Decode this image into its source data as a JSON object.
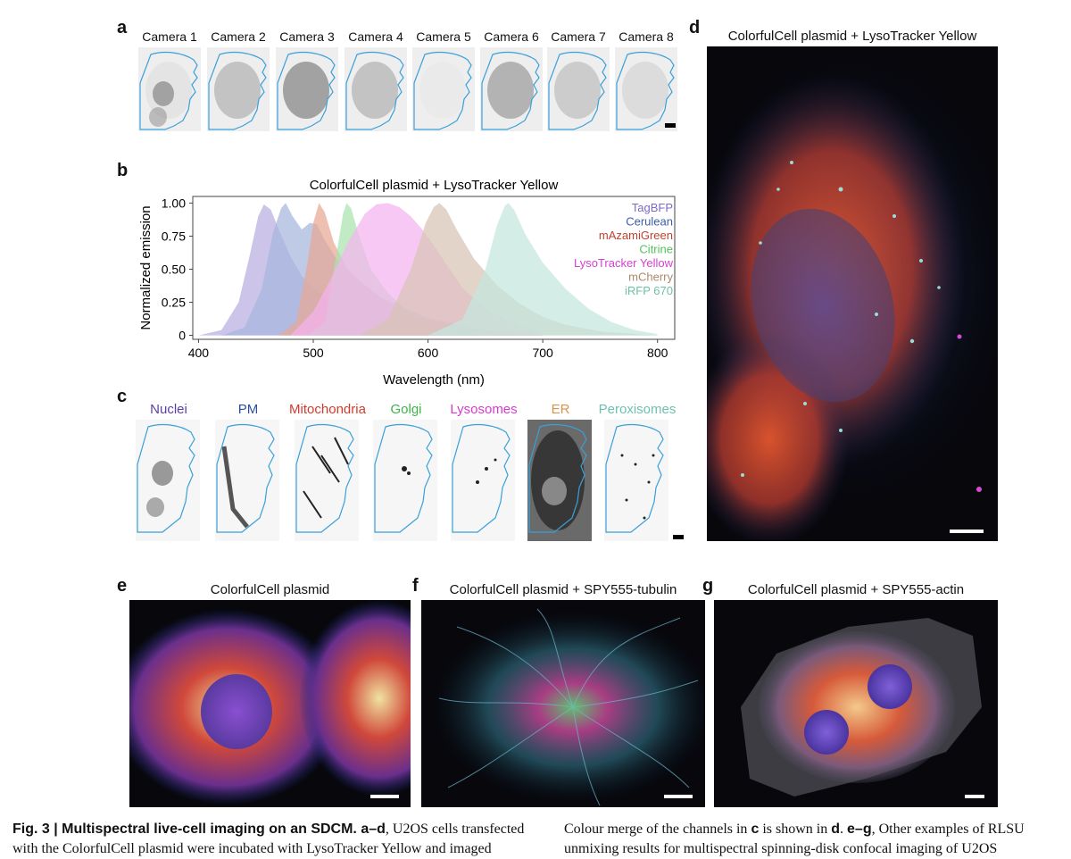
{
  "panels": {
    "a": "a",
    "b": "b",
    "c": "c",
    "d": "d",
    "e": "e",
    "f": "f",
    "g": "g"
  },
  "camera_labels": [
    "Camera 1",
    "Camera 2",
    "Camera 3",
    "Camera 4",
    "Camera 5",
    "Camera 6",
    "Camera 7",
    "Camera 8"
  ],
  "channel_labels": [
    {
      "text": "Nuclei",
      "color": "#5b3fa6"
    },
    {
      "text": "PM",
      "color": "#2b4f9e"
    },
    {
      "text": "Mitochondria",
      "color": "#d63a2a"
    },
    {
      "text": "Golgi",
      "color": "#3db34a"
    },
    {
      "text": "Lysosomes",
      "color": "#d93ad1"
    },
    {
      "text": "ER",
      "color": "#d9944a"
    },
    {
      "text": "Peroxisomes",
      "color": "#6cc2ae"
    }
  ],
  "titles": {
    "b": "ColorfulCell plasmid + LysoTracker Yellow",
    "d": "ColorfulCell plasmid + LysoTracker Yellow",
    "e": "ColorfulCell plasmid",
    "f": "ColorfulCell plasmid + SPY555-tubulin",
    "g": "ColorfulCell plasmid + SPY555-actin"
  },
  "chart_data": {
    "type": "area",
    "title": "ColorfulCell plasmid + LysoTracker Yellow",
    "xlabel": "Wavelength (nm)",
    "ylabel": "Normalized emission",
    "xlim": [
      395,
      815
    ],
    "ylim": [
      -0.03,
      1.05
    ],
    "xticks": [
      "400",
      "500",
      "600",
      "700",
      "800"
    ],
    "yticks": [
      "0",
      "0.25",
      "0.50",
      "0.75",
      "1.00"
    ],
    "legend_position": "top-right",
    "series": [
      {
        "name": "TagBFP",
        "color": "#7f6bc4",
        "peak": 457,
        "fill": "#b9afe0",
        "x": [
          400,
          420,
          435,
          445,
          452,
          457,
          463,
          470,
          480,
          490,
          500,
          520,
          540,
          560,
          600,
          650,
          700
        ],
        "y": [
          0,
          0.04,
          0.25,
          0.62,
          0.9,
          0.99,
          0.95,
          0.8,
          0.6,
          0.45,
          0.36,
          0.24,
          0.16,
          0.1,
          0.04,
          0.01,
          0
        ]
      },
      {
        "name": "Cerulean",
        "color": "#3d5ea6",
        "peak": 476,
        "fill": "#a6b6dc",
        "x": [
          420,
          440,
          455,
          465,
          472,
          476,
          482,
          490,
          497,
          503,
          510,
          520,
          540,
          560,
          600,
          650,
          700
        ],
        "y": [
          0,
          0.06,
          0.35,
          0.78,
          0.96,
          1.0,
          0.9,
          0.8,
          0.85,
          0.84,
          0.72,
          0.58,
          0.4,
          0.28,
          0.13,
          0.04,
          0
        ]
      },
      {
        "name": "mAzamiGreen",
        "color": "#c4402e",
        "peak": 505,
        "fill": "#e8a894",
        "x": [
          470,
          485,
          495,
          500,
          505,
          510,
          518,
          530,
          545,
          560,
          580,
          600,
          650,
          700
        ],
        "y": [
          0,
          0.1,
          0.55,
          0.85,
          1.0,
          0.93,
          0.7,
          0.5,
          0.38,
          0.28,
          0.18,
          0.11,
          0.03,
          0
        ]
      },
      {
        "name": "Citrine",
        "color": "#56c05f",
        "peak": 529,
        "fill": "#a9e3ad",
        "x": [
          495,
          510,
          520,
          526,
          529,
          533,
          540,
          550,
          565,
          580,
          600,
          630,
          680
        ],
        "y": [
          0,
          0.1,
          0.6,
          0.92,
          1.0,
          0.96,
          0.75,
          0.5,
          0.32,
          0.2,
          0.1,
          0.03,
          0
        ]
      },
      {
        "name": "LysoTracker Yellow",
        "color": "#d640d0",
        "peak": 565,
        "fill": "#f5b3f0",
        "x": [
          480,
          500,
          515,
          530,
          545,
          555,
          565,
          575,
          585,
          595,
          605,
          615,
          630,
          650,
          680,
          700
        ],
        "y": [
          0,
          0.18,
          0.42,
          0.7,
          0.92,
          0.99,
          1.0,
          0.97,
          0.9,
          0.8,
          0.68,
          0.55,
          0.36,
          0.2,
          0.07,
          0.02
        ]
      },
      {
        "name": "mCherry",
        "color": "#b0886a",
        "peak": 610,
        "fill": "#d8c3b6",
        "x": [
          540,
          565,
          585,
          598,
          605,
          610,
          616,
          625,
          640,
          660,
          680,
          700,
          720,
          750,
          800
        ],
        "y": [
          0,
          0.12,
          0.5,
          0.85,
          0.97,
          1.0,
          0.95,
          0.8,
          0.58,
          0.38,
          0.24,
          0.14,
          0.08,
          0.03,
          0
        ]
      },
      {
        "name": "iRFP 670",
        "color": "#6fbfa9",
        "peak": 670,
        "fill": "#c4e8de",
        "x": [
          600,
          630,
          650,
          660,
          667,
          670,
          675,
          685,
          700,
          720,
          740,
          760,
          780,
          800
        ],
        "y": [
          0,
          0.12,
          0.5,
          0.83,
          0.98,
          1.0,
          0.95,
          0.76,
          0.55,
          0.35,
          0.2,
          0.1,
          0.04,
          0.01
        ]
      }
    ]
  },
  "caption_left": {
    "bold": "Fig. 3 | Multispectral live-cell imaging on an SDCM. a–d",
    "text1": ", U2OS cells transfected",
    "line2": "with the ColorfulCell plasmid were incubated with LysoTracker Yellow and imaged"
  },
  "caption_right": {
    "line1a": "Colour merge of the channels in ",
    "c": "c",
    "line1b": " is shown in ",
    "d": "d",
    "line1c": ". ",
    "eg": "e–g",
    "line1d": ", Other examples of RLSU",
    "line2": "unmixing results for multispectral spinning-disk confocal imaging of U2OS"
  }
}
